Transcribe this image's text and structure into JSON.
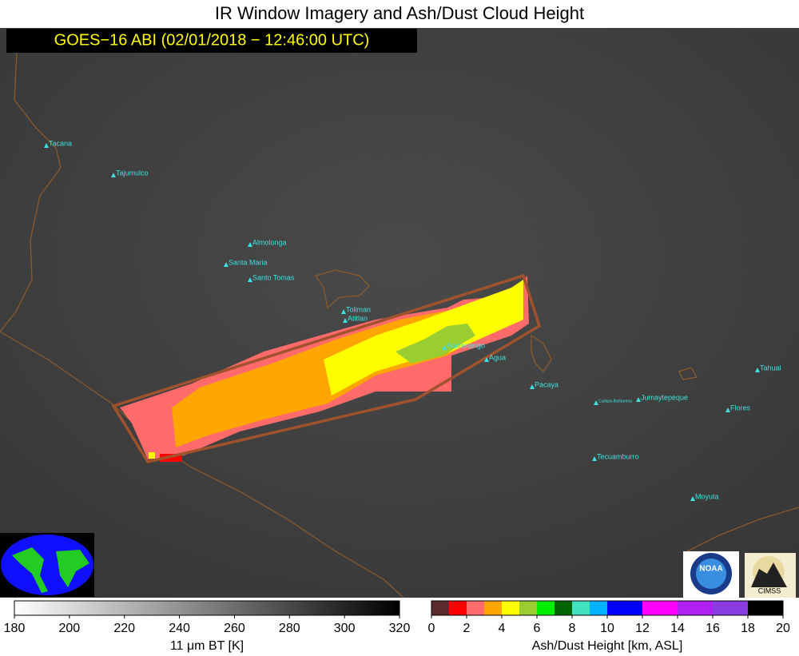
{
  "title": "IR Window Imagery and Ash/Dust Cloud Height",
  "timestamp": "GOES−16 ABI (02/01/2018 − 12:46:00 UTC)",
  "volcanoes": [
    "Tacana",
    "Tajumulco",
    "Almolonga",
    "Santa Maria",
    "Santo Tomas",
    "Toliman",
    "Atitlan",
    "Acatenango",
    "Agua",
    "Pacaya",
    "Cuilapa-Barbarena",
    "Jumaytepeque",
    "Tahual",
    "Flores",
    "Tecuamburro",
    "Moyuta"
  ],
  "colorbars": [
    {
      "label": "11 μm BT [K]",
      "range": [
        180,
        320
      ],
      "ticks": [
        180,
        200,
        220,
        240,
        260,
        280,
        300,
        320
      ],
      "colors": [
        "#ffffff",
        "#000000"
      ]
    },
    {
      "label": "Ash/Dust Height [km, ASL]",
      "range": [
        0,
        20
      ],
      "ticks": [
        0,
        2,
        4,
        6,
        8,
        10,
        12,
        14,
        16,
        18,
        20
      ],
      "colors": [
        "#5c2b2b",
        "#ff0000",
        "#ff6a6a",
        "#ffa500",
        "#ffff00",
        "#9acd32",
        "#00ee00",
        "#006400",
        "#40e0c0",
        "#00b2ff",
        "#0000ff",
        "#0000ff",
        "#ff00ff",
        "#ff00ff",
        "#b020f0",
        "#b020f0",
        "#8a3be2",
        "#8a3be2",
        "#000000",
        "#000000"
      ]
    }
  ],
  "logos": [
    "NOAA",
    "CIMSS"
  ]
}
